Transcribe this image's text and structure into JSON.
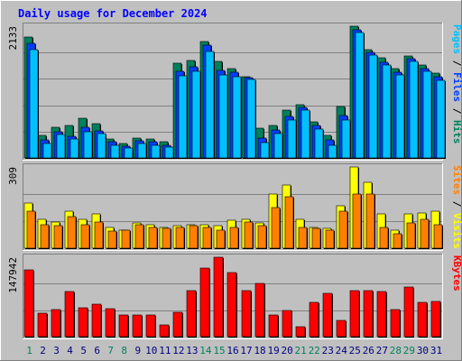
{
  "chart_data": {
    "type": "bar",
    "title": "Daily usage for December 2024",
    "categories": [
      "1",
      "2",
      "3",
      "4",
      "5",
      "6",
      "7",
      "8",
      "9",
      "10",
      "11",
      "12",
      "13",
      "14",
      "15",
      "16",
      "17",
      "18",
      "19",
      "20",
      "21",
      "22",
      "23",
      "24",
      "25",
      "26",
      "27",
      "28",
      "29",
      "30",
      "31"
    ],
    "weekend_days": [
      "1",
      "7",
      "8",
      "14",
      "15",
      "21",
      "22",
      "28",
      "29"
    ],
    "colors": {
      "title": "#0000ff",
      "weekday_label": "#000080",
      "weekend_label": "#00805c",
      "plot_bg": "#c0c0c0",
      "grid": "#808080",
      "hits": "#00805c",
      "files": "#0040ff",
      "pages": "#00c0ff",
      "visits": "#ffff00",
      "sites": "#ff8000",
      "kbytes": "#ff0000"
    },
    "panels": [
      {
        "id": "hits-files-pages",
        "ymax_label": "2133",
        "ylim": [
          0,
          2133
        ],
        "legend_parts": [
          {
            "text": "Pages",
            "color": "#00c0ff"
          },
          {
            "text": " / ",
            "color": "#000000"
          },
          {
            "text": "Files",
            "color": "#0040ff"
          },
          {
            "text": " / ",
            "color": "#000000"
          },
          {
            "text": "Hits",
            "color": "#00805c"
          }
        ],
        "series": [
          {
            "name": "Hits",
            "color": "#00805c",
            "values": [
              1960,
              360,
              500,
              520,
              640,
              560,
              310,
              240,
              320,
              300,
              260,
              1540,
              1580,
              1880,
              1560,
              1450,
              1320,
              480,
              520,
              770,
              860,
              580,
              360,
              840,
              2133,
              1760,
              1620,
              1440,
              1650,
              1500,
              1380
            ]
          },
          {
            "name": "Files",
            "color": "#0040ff",
            "values": [
              1860,
              290,
              420,
              350,
              490,
              440,
              270,
              190,
              280,
              260,
              210,
              1400,
              1480,
              1820,
              1410,
              1390,
              1300,
              320,
              450,
              670,
              820,
              520,
              290,
              680,
              2080,
              1710,
              1550,
              1390,
              1600,
              1450,
              1320
            ]
          },
          {
            "name": "Pages",
            "color": "#00c0ff",
            "values": [
              1750,
              240,
              380,
              300,
              420,
              390,
              200,
              160,
              230,
              210,
              170,
              1330,
              1400,
              1720,
              1340,
              1320,
              1270,
              250,
              400,
              620,
              780,
              470,
              210,
              610,
              2030,
              1660,
              1500,
              1340,
              1560,
              1400,
              1250
            ]
          }
        ]
      },
      {
        "id": "visits-sites",
        "ymax_label": "309",
        "ylim": [
          0,
          309
        ],
        "legend_parts": [
          {
            "text": "Sites",
            "color": "#ff8000"
          },
          {
            "text": " / ",
            "color": "#000000"
          },
          {
            "text": "Visits",
            "color": "#ffff00"
          }
        ],
        "series": [
          {
            "name": "Visits",
            "color": "#ffff00",
            "values": [
              170,
              110,
              100,
              140,
              110,
              130,
              80,
              70,
              95,
              90,
              80,
              85,
              90,
              90,
              85,
              105,
              110,
              95,
              205,
              240,
              110,
              80,
              75,
              160,
              309,
              250,
              130,
              70,
              130,
              135,
              140
            ]
          },
          {
            "name": "Sites",
            "color": "#ff8000",
            "values": [
              140,
              90,
              85,
              120,
              90,
              100,
              65,
              70,
              90,
              80,
              75,
              80,
              85,
              80,
              70,
              80,
              100,
              85,
              155,
              195,
              80,
              75,
              70,
              140,
              205,
              205,
              80,
              55,
              95,
              110,
              90
            ]
          }
        ]
      },
      {
        "id": "kbytes",
        "ymax_label": "147942",
        "ylim": [
          0,
          147942
        ],
        "legend_parts": [
          {
            "text": "KBytes",
            "color": "#ff0000"
          }
        ],
        "series": [
          {
            "name": "KBytes",
            "color": "#ff0000",
            "values": [
              125000,
              43000,
              50000,
              84000,
              54000,
              61000,
              52000,
              41000,
              41000,
              41000,
              22000,
              45000,
              86000,
              128000,
              147942,
              120000,
              85000,
              100000,
              40000,
              49000,
              19000,
              64000,
              81000,
              30000,
              85000,
              85000,
              84000,
              51000,
              93000,
              64000,
              66000
            ]
          }
        ]
      }
    ]
  }
}
